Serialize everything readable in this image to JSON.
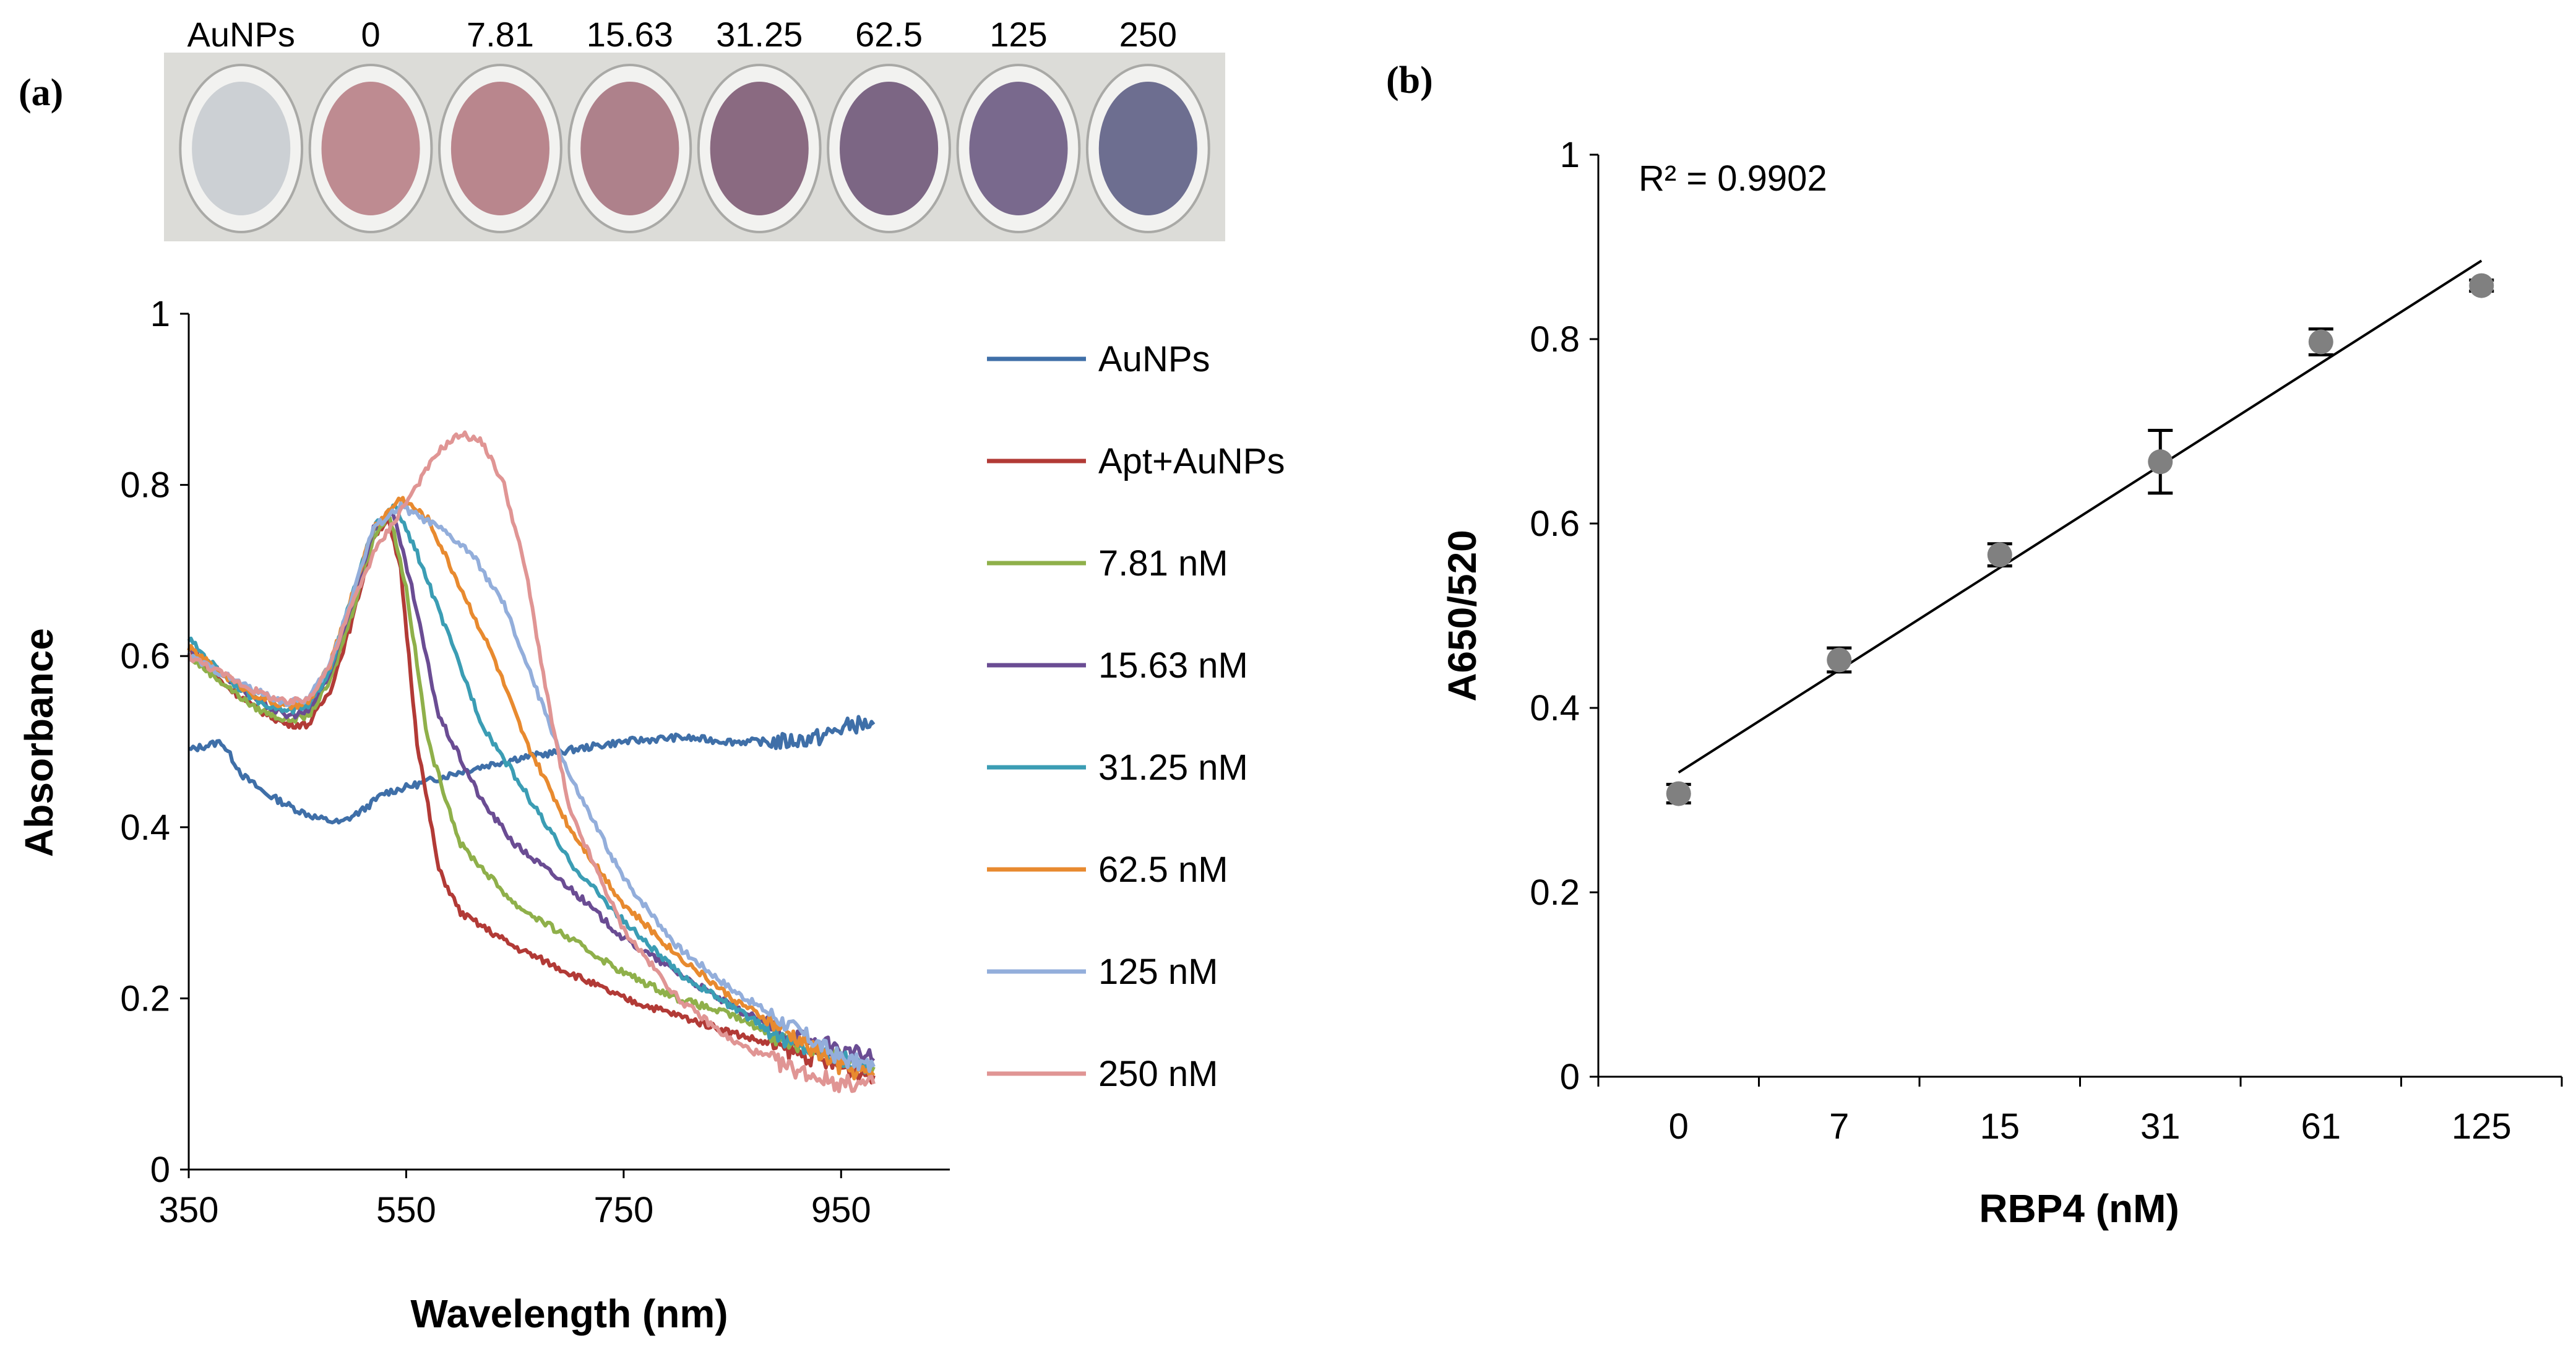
{
  "panels": {
    "a": {
      "label": "(a)"
    },
    "b": {
      "label": "(b)"
    }
  },
  "well_photo": {
    "labels": [
      "AuNPs",
      "0",
      "7.81",
      "15.63",
      "31.25",
      "62.5",
      "125",
      "250"
    ],
    "well_colors": [
      "#c8ccd0",
      "#b87f86",
      "#b27a82",
      "#a67480",
      "#7e5b74",
      "#6f5678",
      "#6b5a82",
      "#5e5f85"
    ]
  },
  "chart_data": [
    {
      "type": "line",
      "title": "",
      "xlabel": "Wavelength (nm)",
      "ylabel": "Absorbance",
      "xlim": [
        350,
        1050
      ],
      "ylim": [
        0,
        1
      ],
      "xticks": [
        "350",
        "550",
        "750",
        "950"
      ],
      "yticks": [
        "0",
        "0.2",
        "0.4",
        "0.6",
        "0.8",
        "1"
      ],
      "legend_position": "right",
      "series": [
        {
          "name": "AuNPs",
          "color": "#3f6fa8",
          "points": [
            [
              350,
              0.49
            ],
            [
              380,
              0.5
            ],
            [
              400,
              0.46
            ],
            [
              420,
              0.44
            ],
            [
              450,
              0.42
            ],
            [
              470,
              0.41
            ],
            [
              490,
              0.405
            ],
            [
              510,
              0.42
            ],
            [
              530,
              0.44
            ],
            [
              560,
              0.45
            ],
            [
              600,
              0.465
            ],
            [
              650,
              0.48
            ],
            [
              700,
              0.49
            ],
            [
              750,
              0.5
            ],
            [
              800,
              0.505
            ],
            [
              850,
              0.5
            ],
            [
              900,
              0.5
            ],
            [
              930,
              0.505
            ],
            [
              960,
              0.52
            ],
            [
              980,
              0.52
            ]
          ]
        },
        {
          "name": "Apt+AuNPs",
          "color": "#b23a36",
          "points": [
            [
              350,
              0.61
            ],
            [
              380,
              0.57
            ],
            [
              410,
              0.54
            ],
            [
              440,
              0.52
            ],
            [
              460,
              0.52
            ],
            [
              480,
              0.56
            ],
            [
              500,
              0.64
            ],
            [
              520,
              0.74
            ],
            [
              533,
              0.76
            ],
            [
              545,
              0.7
            ],
            [
              560,
              0.5
            ],
            [
              580,
              0.35
            ],
            [
              600,
              0.3
            ],
            [
              650,
              0.26
            ],
            [
              700,
              0.23
            ],
            [
              750,
              0.2
            ],
            [
              800,
              0.18
            ],
            [
              850,
              0.16
            ],
            [
              900,
              0.14
            ],
            [
              950,
              0.12
            ],
            [
              980,
              0.11
            ]
          ]
        },
        {
          "name": "7.81 nM",
          "color": "#8fb04a",
          "points": [
            [
              350,
              0.6
            ],
            [
              380,
              0.57
            ],
            [
              410,
              0.54
            ],
            [
              440,
              0.525
            ],
            [
              460,
              0.53
            ],
            [
              480,
              0.57
            ],
            [
              500,
              0.65
            ],
            [
              520,
              0.74
            ],
            [
              535,
              0.765
            ],
            [
              550,
              0.68
            ],
            [
              570,
              0.5
            ],
            [
              600,
              0.38
            ],
            [
              650,
              0.31
            ],
            [
              700,
              0.27
            ],
            [
              750,
              0.23
            ],
            [
              800,
              0.2
            ],
            [
              850,
              0.18
            ],
            [
              900,
              0.15
            ],
            [
              950,
              0.13
            ],
            [
              980,
              0.12
            ]
          ]
        },
        {
          "name": "15.63 nM",
          "color": "#6a4c93",
          "points": [
            [
              350,
              0.61
            ],
            [
              380,
              0.58
            ],
            [
              410,
              0.55
            ],
            [
              440,
              0.53
            ],
            [
              460,
              0.535
            ],
            [
              480,
              0.58
            ],
            [
              500,
              0.66
            ],
            [
              520,
              0.75
            ],
            [
              537,
              0.77
            ],
            [
              555,
              0.68
            ],
            [
              580,
              0.53
            ],
            [
              620,
              0.43
            ],
            [
              650,
              0.38
            ],
            [
              700,
              0.33
            ],
            [
              750,
              0.27
            ],
            [
              800,
              0.23
            ],
            [
              850,
              0.19
            ],
            [
              900,
              0.16
            ],
            [
              950,
              0.14
            ],
            [
              980,
              0.13
            ]
          ]
        },
        {
          "name": "31.25 nM",
          "color": "#3b9db4",
          "points": [
            [
              350,
              0.62
            ],
            [
              380,
              0.58
            ],
            [
              410,
              0.55
            ],
            [
              440,
              0.535
            ],
            [
              460,
              0.54
            ],
            [
              480,
              0.585
            ],
            [
              500,
              0.67
            ],
            [
              520,
              0.75
            ],
            [
              540,
              0.775
            ],
            [
              560,
              0.72
            ],
            [
              590,
              0.62
            ],
            [
              620,
              0.52
            ],
            [
              650,
              0.46
            ],
            [
              700,
              0.36
            ],
            [
              750,
              0.29
            ],
            [
              800,
              0.23
            ],
            [
              850,
              0.19
            ],
            [
              900,
              0.15
            ],
            [
              950,
              0.13
            ],
            [
              980,
              0.12
            ]
          ]
        },
        {
          "name": "62.5 nM",
          "color": "#e88a2f",
          "points": [
            [
              350,
              0.61
            ],
            [
              380,
              0.58
            ],
            [
              410,
              0.555
            ],
            [
              440,
              0.54
            ],
            [
              460,
              0.545
            ],
            [
              480,
              0.59
            ],
            [
              500,
              0.67
            ],
            [
              520,
              0.75
            ],
            [
              545,
              0.785
            ],
            [
              570,
              0.76
            ],
            [
              600,
              0.68
            ],
            [
              630,
              0.6
            ],
            [
              660,
              0.5
            ],
            [
              700,
              0.4
            ],
            [
              750,
              0.31
            ],
            [
              800,
              0.25
            ],
            [
              850,
              0.2
            ],
            [
              900,
              0.16
            ],
            [
              950,
              0.12
            ],
            [
              980,
              0.11
            ]
          ]
        },
        {
          "name": "125 nM",
          "color": "#93aedb",
          "points": [
            [
              350,
              0.6
            ],
            [
              380,
              0.58
            ],
            [
              410,
              0.56
            ],
            [
              440,
              0.545
            ],
            [
              460,
              0.55
            ],
            [
              480,
              0.59
            ],
            [
              500,
              0.67
            ],
            [
              520,
              0.75
            ],
            [
              545,
              0.775
            ],
            [
              580,
              0.75
            ],
            [
              610,
              0.72
            ],
            [
              640,
              0.66
            ],
            [
              670,
              0.56
            ],
            [
              700,
              0.46
            ],
            [
              750,
              0.34
            ],
            [
              800,
              0.26
            ],
            [
              850,
              0.21
            ],
            [
              900,
              0.17
            ],
            [
              950,
              0.13
            ],
            [
              980,
              0.12
            ]
          ]
        },
        {
          "name": "250 nM",
          "color": "#e09594",
          "points": [
            [
              350,
              0.6
            ],
            [
              380,
              0.58
            ],
            [
              410,
              0.56
            ],
            [
              440,
              0.545
            ],
            [
              460,
              0.55
            ],
            [
              480,
              0.59
            ],
            [
              500,
              0.66
            ],
            [
              520,
              0.72
            ],
            [
              540,
              0.76
            ],
            [
              560,
              0.8
            ],
            [
              580,
              0.84
            ],
            [
              600,
              0.86
            ],
            [
              620,
              0.85
            ],
            [
              640,
              0.8
            ],
            [
              660,
              0.7
            ],
            [
              680,
              0.55
            ],
            [
              700,
              0.42
            ],
            [
              750,
              0.28
            ],
            [
              800,
              0.2
            ],
            [
              850,
              0.15
            ],
            [
              900,
              0.12
            ],
            [
              950,
              0.1
            ],
            [
              980,
              0.1
            ]
          ]
        }
      ]
    },
    {
      "type": "scatter",
      "title": "",
      "xlabel": "RBP4 (nM)",
      "ylabel": "A650/520",
      "categories": [
        "0",
        "7",
        "15",
        "31",
        "61",
        "125"
      ],
      "values": [
        0.307,
        0.452,
        0.566,
        0.667,
        0.797,
        0.858
      ],
      "errors": [
        0.01,
        0.013,
        0.012,
        0.034,
        0.014,
        0.006
      ],
      "ylim": [
        0,
        1
      ],
      "yticks": [
        "0",
        "0.2",
        "0.4",
        "0.6",
        "0.8",
        "1"
      ],
      "trendline": {
        "start": 0.33,
        "end": 0.885
      },
      "annotation": "R² = 0.9902",
      "marker_color": "#808080"
    }
  ]
}
